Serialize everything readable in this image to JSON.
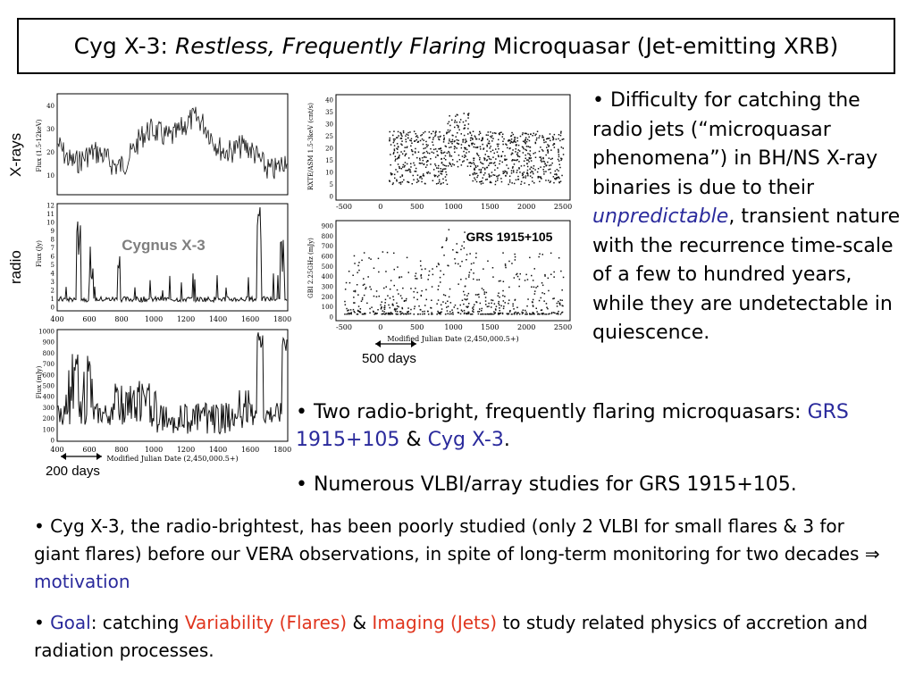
{
  "title": {
    "prefix": "Cyg X-3: ",
    "italic": "Restless, Frequently Flaring",
    "suffix": " Microquasar (Jet-emitting XRB)"
  },
  "side_labels": {
    "xrays": "X-rays",
    "radio": "radio"
  },
  "plots": {
    "cyg_xray": {
      "ylabel": "Flux (1.5-12keV)",
      "yticks": [
        "40",
        "30",
        "20",
        "10"
      ]
    },
    "cyg_radio": {
      "ylabel": "Flux (Jy)",
      "overlay": "Cygnus X-3",
      "yticks": [
        "12",
        "11",
        "10",
        "9",
        "8",
        "7",
        "6",
        "5",
        "4",
        "3",
        "2",
        "1",
        "0"
      ],
      "xticks": [
        "400",
        "600",
        "800",
        "1000",
        "1200",
        "1400",
        "1600",
        "1800"
      ]
    },
    "cyg_zoom": {
      "ylabel": "Flux (mJy)",
      "xlabel": "Modified Julian Date (2,450,000.5+)",
      "yticks": [
        "1000",
        "900",
        "800",
        "700",
        "600",
        "500",
        "400",
        "300",
        "200",
        "100",
        "0"
      ],
      "xticks": [
        "400",
        "600",
        "800",
        "1000",
        "1200",
        "1400",
        "1600",
        "1800"
      ]
    },
    "grs_xray": {
      "ylabel": "RXTE/ASM 1.5-3keV (cnt/s)",
      "yticks": [
        "40",
        "35",
        "30",
        "25",
        "20",
        "15",
        "10",
        "5",
        "0"
      ],
      "xticks": [
        "-500",
        "0",
        "500",
        "1000",
        "1500",
        "2000",
        "2500"
      ]
    },
    "grs_radio": {
      "ylabel": "GBI 2.25GHz (mJy)",
      "overlay": "GRS 1915+105",
      "xlabel": "Modified Julian Date (2,450,000.5+)",
      "yticks": [
        "900",
        "800",
        "700",
        "600",
        "500",
        "400",
        "300",
        "200",
        "100",
        "0"
      ],
      "xticks": [
        "-500",
        "0",
        "500",
        "1000",
        "1500",
        "2000",
        "2500"
      ]
    }
  },
  "annotations": {
    "days500": "500 days",
    "days200": "200 days"
  },
  "bullets": {
    "b1": {
      "pre": "• Difficulty for catching the radio jets (“microquasar phenomena”) in BH/NS X-ray binaries is due to their ",
      "em": "unpredictable",
      "post": ", transient nature with the recurrence time-scale of a few to hundred years, while they are undetectable in quiescence."
    },
    "b2": {
      "pre": "• Two radio-bright, frequently flaring microquasars: ",
      "grs": "GRS 1915+105",
      "amp": " & ",
      "cyg": "Cyg X-3",
      "end": "."
    },
    "b3": {
      "text": "• Numerous VLBI/array studies for GRS 1915+105."
    },
    "b4": {
      "pre": "• Cyg X-3, the radio-brightest, has been poorly studied (only 2 VLBI for small flares & 3 for giant flares) before our VERA observations, in spite of long-term monitoring for two decades ⇒ ",
      "motivation": "motivation"
    },
    "b5": {
      "bullet": "• ",
      "goal": "Goal",
      "mid": ": catching ",
      "var": "Variability (Flares)",
      "amp": " & ",
      "img": "Imaging (Jets)",
      "post": " to study related physics of accretion and radiation processes."
    }
  },
  "colors": {
    "blue": "#2a2a9c",
    "red": "#e0351e",
    "grey_label": "#7f7f7f"
  }
}
